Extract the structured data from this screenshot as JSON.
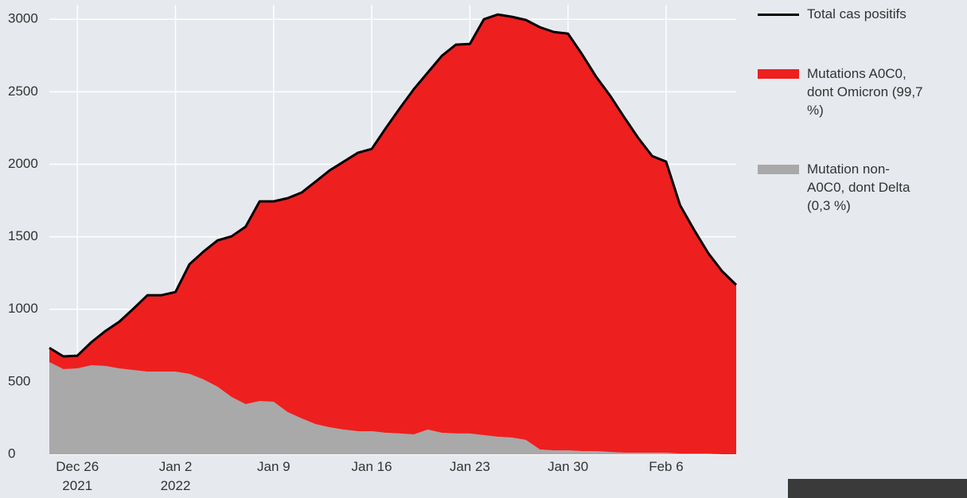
{
  "chart_data": {
    "type": "stacked_area",
    "x": [
      "2021-12-24",
      "2021-12-25",
      "2021-12-26",
      "2021-12-27",
      "2021-12-28",
      "2021-12-29",
      "2021-12-30",
      "2021-12-31",
      "2022-01-01",
      "2022-01-02",
      "2022-01-03",
      "2022-01-04",
      "2022-01-05",
      "2022-01-06",
      "2022-01-07",
      "2022-01-08",
      "2022-01-09",
      "2022-01-10",
      "2022-01-11",
      "2022-01-12",
      "2022-01-13",
      "2022-01-14",
      "2022-01-15",
      "2022-01-16",
      "2022-01-17",
      "2022-01-18",
      "2022-01-19",
      "2022-01-20",
      "2022-01-21",
      "2022-01-22",
      "2022-01-23",
      "2022-01-24",
      "2022-01-25",
      "2022-01-26",
      "2022-01-27",
      "2022-01-28",
      "2022-01-29",
      "2022-01-30",
      "2022-01-31",
      "2022-02-01",
      "2022-02-02",
      "2022-02-03",
      "2022-02-04",
      "2022-02-05",
      "2022-02-06",
      "2022-02-07",
      "2022-02-08",
      "2022-02-09",
      "2022-02-10",
      "2022-02-11"
    ],
    "series": [
      {
        "name": "Mutation non-A0C0, dont Delta (0,3 %)",
        "color": "#a9a9a9",
        "kind": "area",
        "values": [
          636,
          587,
          592,
          614,
          609,
          592,
          581,
          570,
          570,
          570,
          554,
          516,
          466,
          395,
          346,
          367,
          362,
          291,
          247,
          208,
          186,
          170,
          159,
          159,
          148,
          143,
          137,
          170,
          148,
          143,
          143,
          132,
          121,
          115,
          99,
          33,
          27,
          27,
          22,
          22,
          16,
          11,
          11,
          11,
          11,
          5,
          5,
          5,
          0,
          0
        ]
      },
      {
        "name": "Mutations A0C0, dont Omicron (99,7 %)",
        "color": "#ee1f1f",
        "kind": "area",
        "values": [
          98,
          88,
          88,
          159,
          241,
          323,
          423,
          527,
          527,
          549,
          757,
          882,
          1009,
          1108,
          1223,
          1377,
          1382,
          1475,
          1558,
          1673,
          1772,
          1848,
          1920,
          1947,
          2101,
          2243,
          2381,
          2463,
          2600,
          2682,
          2687,
          2868,
          2912,
          2902,
          2896,
          2912,
          2885,
          2874,
          2737,
          2583,
          2458,
          2315,
          2172,
          2046,
          2007,
          1712,
          1542,
          1383,
          1262,
          1168
        ]
      },
      {
        "name": "Total cas positifs",
        "color": "#000000",
        "kind": "line",
        "values": [
          734,
          675,
          680,
          773,
          850,
          915,
          1004,
          1097,
          1097,
          1119,
          1311,
          1398,
          1475,
          1503,
          1569,
          1744,
          1744,
          1766,
          1805,
          1881,
          1958,
          2018,
          2079,
          2106,
          2249,
          2386,
          2518,
          2633,
          2748,
          2825,
          2830,
          3000,
          3033,
          3017,
          2995,
          2945,
          2912,
          2901,
          2759,
          2605,
          2474,
          2326,
          2183,
          2057,
          2018,
          1717,
          1547,
          1388,
          1262,
          1168
        ]
      }
    ],
    "xlim": [
      "2021-12-24",
      "2022-02-11"
    ],
    "xticks": [
      {
        "value": "2021-12-26",
        "label": "Dec 26\n2021"
      },
      {
        "value": "2022-01-02",
        "label": "Jan 2\n2022"
      },
      {
        "value": "2022-01-09",
        "label": "Jan 9"
      },
      {
        "value": "2022-01-16",
        "label": "Jan 16"
      },
      {
        "value": "2022-01-23",
        "label": "Jan 23"
      },
      {
        "value": "2022-01-30",
        "label": "Jan 30"
      },
      {
        "value": "2022-02-06",
        "label": "Feb 6"
      }
    ],
    "ylim": [
      0,
      3100
    ],
    "yticks": [
      0,
      500,
      1000,
      1500,
      2000,
      2500,
      3000
    ],
    "grid": true,
    "legend": "right"
  }
}
